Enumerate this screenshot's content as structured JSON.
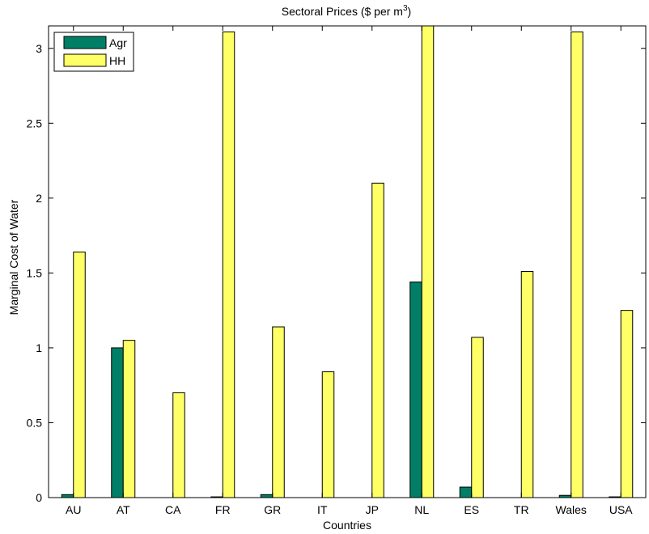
{
  "chart_data": {
    "type": "bar",
    "title": "Sectoral Prices ($ per m",
    "title_sup": "3",
    "title_close": ")",
    "xlabel": "Countries",
    "ylabel": "Marginal Cost of Water",
    "categories": [
      "AU",
      "AT",
      "CA",
      "FR",
      "GR",
      "IT",
      "JP",
      "NL",
      "ES",
      "TR",
      "Wales",
      "USA"
    ],
    "ylim": [
      0,
      3.15
    ],
    "yticks": [
      0,
      0.5,
      1,
      1.5,
      2,
      2.5,
      3
    ],
    "ytick_labels": [
      "0",
      "0.5",
      "1",
      "1.5",
      "2",
      "2.5",
      "3"
    ],
    "grid": false,
    "legend_position": "top-left",
    "series": [
      {
        "name": "Agr",
        "color": "#007f66",
        "values": [
          0.02,
          1.0,
          0.0,
          0.005,
          0.02,
          0.0,
          0.0,
          1.44,
          0.07,
          0.0,
          0.015,
          0.005
        ]
      },
      {
        "name": "HH",
        "color": "#ffff66",
        "values": [
          1.64,
          1.05,
          0.7,
          3.11,
          1.14,
          0.84,
          2.1,
          3.16,
          1.07,
          1.51,
          3.11,
          1.25
        ]
      }
    ]
  }
}
